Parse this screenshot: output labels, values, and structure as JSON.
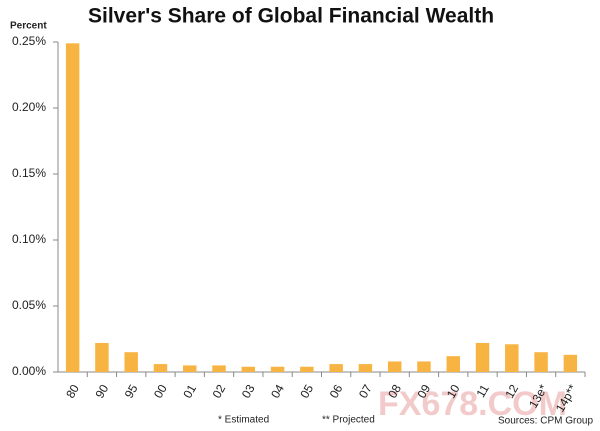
{
  "chart_data": {
    "type": "bar",
    "title": "Silver's Share of Global Financial Wealth",
    "y_label": "Percent",
    "categories": [
      "80",
      "90",
      "95",
      "00",
      "01",
      "02",
      "03",
      "04",
      "05",
      "06",
      "07",
      "08",
      "09",
      "10",
      "11",
      "12",
      "13e*",
      "14p**"
    ],
    "values": [
      0.249,
      0.022,
      0.015,
      0.006,
      0.005,
      0.005,
      0.004,
      0.004,
      0.004,
      0.006,
      0.006,
      0.008,
      0.008,
      0.012,
      0.022,
      0.021,
      0.015,
      0.013
    ],
    "color": "#f8b443",
    "ylim": [
      0,
      0.25
    ],
    "yticks": [
      {
        "value": 0,
        "label": "0.00%"
      },
      {
        "value": 0.05,
        "label": "0.05%"
      },
      {
        "value": 0.1,
        "label": "0.10%"
      },
      {
        "value": 0.15,
        "label": "0.15%"
      },
      {
        "value": 0.2,
        "label": "0.20%"
      },
      {
        "value": 0.25,
        "label": "0.25%"
      }
    ],
    "notes": [
      "* Estimated",
      "** Projected"
    ],
    "source": "Sources:  CPM Group",
    "watermark": "FX678.COM"
  }
}
